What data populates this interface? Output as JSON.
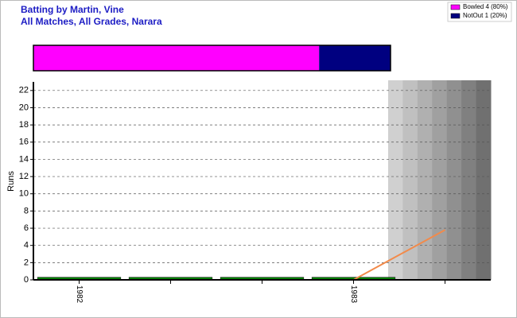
{
  "chart_data": [
    {
      "type": "stacked-bar",
      "title": "Batting by Martin, Vine",
      "subtitle": "All Matches, All Grades, Narara",
      "xlim": [
        0,
        100
      ],
      "series": [
        {
          "name": "Bowled 4 (80%)",
          "color": "#ff00ff",
          "values": [
            80
          ]
        },
        {
          "name": "NotOut 1 (20%)",
          "color": "#000080",
          "values": [
            20
          ]
        }
      ],
      "legend": "top-right"
    },
    {
      "type": "bar",
      "y_label": "Runs",
      "categories": [
        "1982",
        null,
        null,
        "1983",
        null
      ],
      "ylim": [
        0,
        23
      ],
      "yticks": [
        0,
        2,
        4,
        6,
        8,
        10,
        12,
        14,
        16,
        18,
        20,
        22
      ],
      "grid": true,
      "series": [
        {
          "type": "bar",
          "color": "#008000",
          "values": [
            0.3,
            0.3,
            0.3,
            0.3,
            null
          ]
        },
        {
          "type": "line",
          "color": "#f28a4a",
          "values": [
            0,
            0,
            0,
            0,
            5.8
          ]
        }
      ]
    }
  ]
}
